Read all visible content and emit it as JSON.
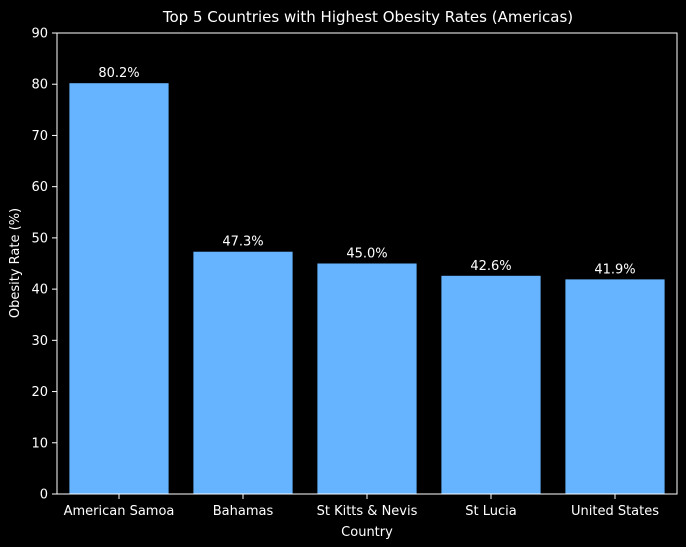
{
  "chart_data": {
    "type": "bar",
    "title": "Top 5 Countries with Highest Obesity Rates (Americas)",
    "xlabel": "Country",
    "ylabel": "Obesity Rate (%)",
    "categories": [
      "American Samoa",
      "Bahamas",
      "St Kitts & Nevis",
      "St Lucia",
      "United States"
    ],
    "values": [
      80.2,
      47.3,
      45.0,
      42.6,
      41.9
    ],
    "data_labels": [
      "80.2%",
      "47.3%",
      "45.0%",
      "42.6%",
      "41.9%"
    ],
    "ylim": [
      0,
      90
    ],
    "yticks": [
      0,
      10,
      20,
      30,
      40,
      50,
      60,
      70,
      80,
      90
    ],
    "grid": false,
    "legend": "none",
    "colors": {
      "bar": "#66b3ff",
      "background": "#000000",
      "text": "#ffffff",
      "axis": "#ffffff"
    }
  }
}
